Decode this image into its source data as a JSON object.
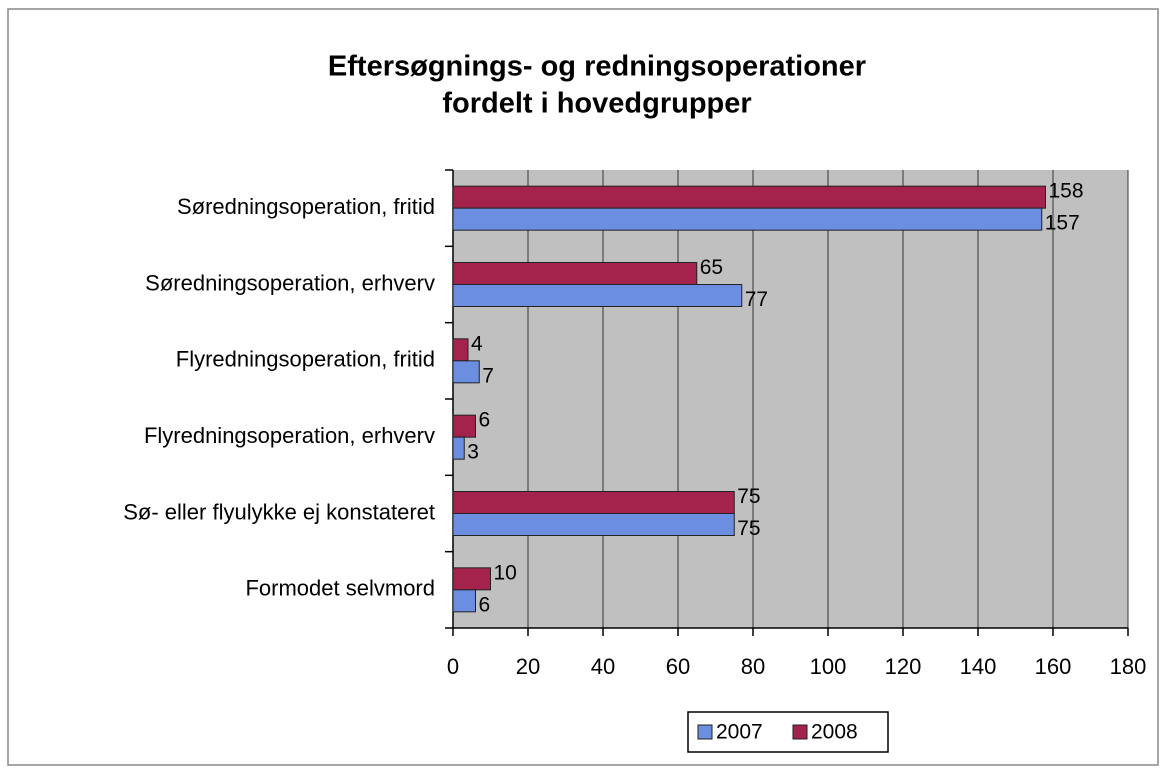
{
  "chart_data": {
    "type": "bar",
    "orientation": "horizontal",
    "title": [
      "Eftersøgnings- og redningsoperationer",
      "fordelt i hovedgrupper"
    ],
    "categories": [
      "Søredningsoperation, fritid",
      "Søredningsoperation, erhverv",
      "Flyredningsoperation, fritid",
      "Flyredningsoperation, erhverv",
      "Sø- eller flyulykke ej konstateret",
      "Formodet selvmord"
    ],
    "series": [
      {
        "name": "2007",
        "color": "#6b8ee0",
        "values": [
          157,
          77,
          7,
          3,
          75,
          6
        ]
      },
      {
        "name": "2008",
        "color": "#a3234c",
        "values": [
          158,
          65,
          4,
          6,
          75,
          10
        ]
      }
    ],
    "xlim": [
      0,
      180
    ],
    "xticks": [
      0,
      20,
      40,
      60,
      80,
      100,
      120,
      140,
      160,
      180
    ],
    "grid": true,
    "legend": "bottom"
  }
}
